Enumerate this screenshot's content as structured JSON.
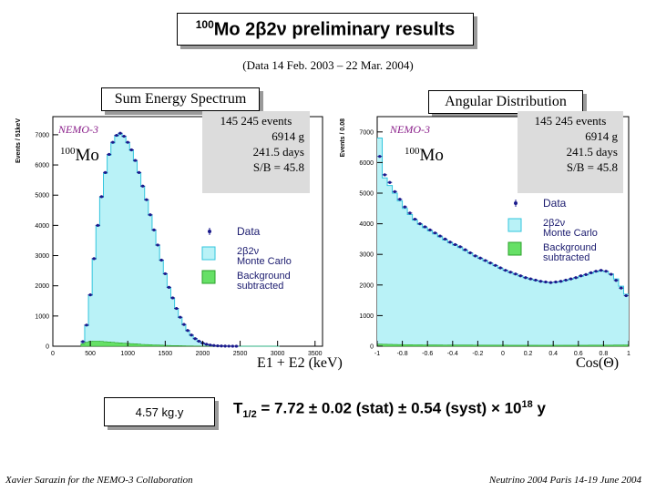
{
  "header": {
    "title_isotope": "100",
    "title_rest": "Mo 2β2ν preliminary results",
    "subtitle": "(Data  14 Feb. 2003 –  22 Mar. 2004)"
  },
  "left_panel": {
    "title": "Sum Energy Spectrum"
  },
  "right_panel": {
    "title": "Angular Distribution"
  },
  "footer": {
    "exposure": "4.57 kg.y",
    "halflife_prefix": "T",
    "halflife_sub": "1/2",
    "halflife_mid": " = 7.72 ± 0.02 (stat) ± 0.54 (syst) × 10",
    "halflife_exp": "18",
    "halflife_unit": " y",
    "left_credit": "Xavier Sarazin for the NEMO-3 Collaboration",
    "right_credit": "Neutrino 2004 Paris 14-19 June 2004"
  },
  "colors": {
    "mc_fill": "#b9f2f7",
    "mc_stroke": "#33c5dd",
    "background_fill": "#66e066",
    "data_marker": "#1a1a8c"
  },
  "chart_data": [
    {
      "type": "histogram",
      "ylabel": "Events / 51keV",
      "xlabel": "E1 + E2  (keV)",
      "xlim": [
        0,
        3600
      ],
      "ylim": [
        0,
        7600
      ],
      "xticks": [
        0,
        500,
        1000,
        1500,
        2000,
        2500,
        3000,
        3500
      ],
      "yticks": [
        0,
        1000,
        2000,
        3000,
        4000,
        5000,
        6000,
        7000
      ],
      "experiment_label": "NEMO-3",
      "isotope_mass": "100",
      "isotope_symbol": "Mo",
      "stats": [
        "145 245  events",
        "6914 g",
        "241.5 days",
        "S/B = 45.8"
      ],
      "legend": [
        "Data",
        "2β2ν",
        "Monte Carlo",
        "Background",
        "subtracted"
      ],
      "x": [
        400,
        450,
        500,
        550,
        600,
        650,
        700,
        750,
        800,
        850,
        900,
        950,
        1000,
        1050,
        1100,
        1150,
        1200,
        1250,
        1300,
        1350,
        1400,
        1450,
        1500,
        1550,
        1600,
        1650,
        1700,
        1750,
        1800,
        1850,
        1900,
        1950,
        2000,
        2050,
        2100,
        2150,
        2200,
        2250,
        2300,
        2350,
        2400,
        2450,
        2500,
        2550,
        2600,
        2650,
        2700,
        2750,
        2800,
        2850,
        2900,
        2950,
        3000
      ],
      "series": [
        {
          "name": "Data",
          "values": [
            150,
            700,
            1700,
            2900,
            4000,
            4950,
            5750,
            6350,
            6750,
            6980,
            7050,
            6950,
            6750,
            6500,
            6150,
            5750,
            5300,
            4850,
            4350,
            3850,
            3350,
            2850,
            2400,
            1950,
            1600,
            1250,
            960,
            720,
            520,
            370,
            250,
            165,
            105,
            65,
            40,
            22,
            13,
            7,
            4,
            2,
            1,
            1,
            0,
            0,
            0,
            0,
            0,
            0,
            0,
            0,
            0,
            0,
            0
          ]
        },
        {
          "name": "Monte Carlo",
          "values": [
            150,
            680,
            1680,
            2880,
            3980,
            4930,
            5720,
            6320,
            6720,
            6950,
            7030,
            6940,
            6730,
            6480,
            6130,
            5740,
            5290,
            4840,
            4340,
            3840,
            3340,
            2840,
            2390,
            1940,
            1590,
            1240,
            950,
            710,
            510,
            360,
            245,
            160,
            100,
            60,
            36,
            20,
            11,
            6,
            3,
            2,
            1,
            0,
            0,
            0,
            0,
            0,
            0,
            0,
            0,
            0,
            0,
            0,
            0
          ]
        },
        {
          "name": "Background",
          "values": [
            80,
            130,
            160,
            170,
            170,
            160,
            150,
            140,
            130,
            120,
            110,
            100,
            95,
            85,
            80,
            70,
            60,
            55,
            50,
            45,
            40,
            35,
            30,
            25,
            22,
            20,
            16,
            13,
            10,
            8,
            6,
            5,
            4,
            3,
            2,
            2,
            1,
            1,
            0,
            0,
            0,
            0,
            0,
            0,
            0,
            0,
            0,
            0,
            0,
            0,
            0,
            0,
            0
          ]
        }
      ]
    },
    {
      "type": "histogram",
      "ylabel": "Events / 0.08",
      "xlabel": "Cos(Θ)",
      "xlim": [
        -1,
        1
      ],
      "ylim": [
        0,
        7500
      ],
      "xticks": [
        -1,
        -0.8,
        -0.6,
        -0.4,
        -0.2,
        0,
        0.2,
        0.4,
        0.6,
        0.8,
        1
      ],
      "yticks": [
        0,
        1000,
        2000,
        3000,
        4000,
        5000,
        6000,
        7000
      ],
      "experiment_label": "NEMO-3",
      "isotope_mass": "100",
      "isotope_symbol": "Mo",
      "stats": [
        "145 245  events",
        "6914 g",
        "241.5 days",
        "S/B = 45.8"
      ],
      "legend": [
        "Data",
        "2β2ν",
        "Monte Carlo",
        "Background",
        "subtracted"
      ],
      "x": [
        -0.98,
        -0.94,
        -0.9,
        -0.86,
        -0.82,
        -0.78,
        -0.74,
        -0.7,
        -0.66,
        -0.62,
        -0.58,
        -0.54,
        -0.5,
        -0.46,
        -0.42,
        -0.38,
        -0.34,
        -0.3,
        -0.26,
        -0.22,
        -0.18,
        -0.14,
        -0.1,
        -0.06,
        -0.02,
        0.02,
        0.06,
        0.1,
        0.14,
        0.18,
        0.22,
        0.26,
        0.3,
        0.34,
        0.38,
        0.42,
        0.46,
        0.5,
        0.54,
        0.58,
        0.62,
        0.66,
        0.7,
        0.74,
        0.78,
        0.82,
        0.86,
        0.9,
        0.94,
        0.98
      ],
      "series": [
        {
          "name": "Data",
          "values": [
            6200,
            5600,
            5350,
            5050,
            4800,
            4550,
            4350,
            4150,
            4000,
            3900,
            3800,
            3700,
            3600,
            3500,
            3400,
            3320,
            3250,
            3150,
            3050,
            2950,
            2880,
            2800,
            2720,
            2640,
            2560,
            2480,
            2420,
            2360,
            2300,
            2240,
            2200,
            2160,
            2120,
            2100,
            2080,
            2100,
            2120,
            2160,
            2200,
            2240,
            2300,
            2340,
            2400,
            2450,
            2480,
            2450,
            2350,
            2150,
            1900,
            1650
          ]
        },
        {
          "name": "Monte Carlo",
          "values": [
            6800,
            5500,
            5250,
            5000,
            4750,
            4500,
            4300,
            4120,
            3980,
            3870,
            3770,
            3670,
            3570,
            3470,
            3380,
            3300,
            3220,
            3130,
            3040,
            2950,
            2870,
            2790,
            2710,
            2630,
            2550,
            2480,
            2410,
            2350,
            2290,
            2240,
            2190,
            2150,
            2120,
            2090,
            2080,
            2090,
            2110,
            2150,
            2190,
            2230,
            2280,
            2330,
            2380,
            2430,
            2460,
            2440,
            2360,
            2200,
            1960,
            1700
          ]
        },
        {
          "name": "Background",
          "values": [
            70,
            65,
            60,
            58,
            55,
            52,
            50,
            48,
            46,
            45,
            44,
            43,
            42,
            41,
            40,
            40,
            39,
            38,
            38,
            37,
            36,
            36,
            35,
            35,
            34,
            34,
            33,
            33,
            33,
            32,
            32,
            32,
            31,
            31,
            31,
            31,
            31,
            32,
            32,
            32,
            33,
            33,
            34,
            34,
            35,
            35,
            36,
            38,
            40,
            45
          ]
        }
      ]
    }
  ]
}
